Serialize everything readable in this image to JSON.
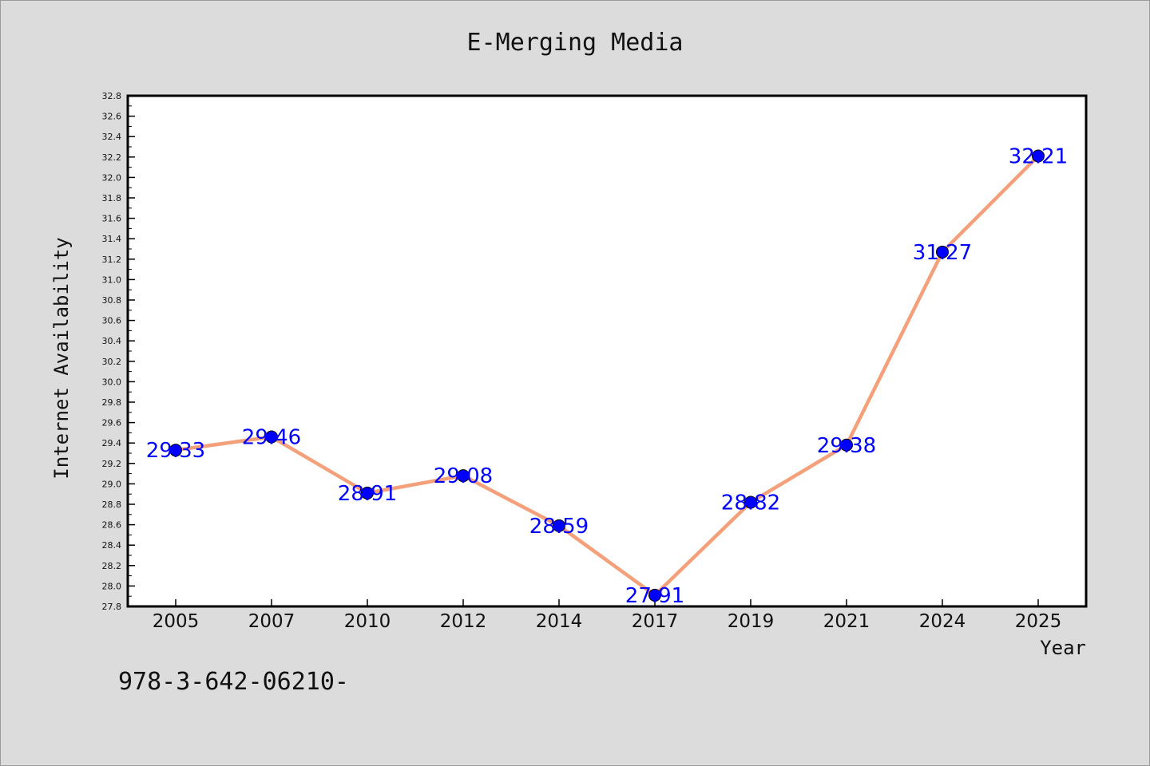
{
  "chart_data": {
    "type": "line",
    "title": "E-Merging Media",
    "xlabel": "Year",
    "ylabel": "Internet Availability",
    "categories": [
      "2005",
      "2007",
      "2010",
      "2012",
      "2014",
      "2017",
      "2019",
      "2021",
      "2024",
      "2025"
    ],
    "series": [
      {
        "values": [
          29.33,
          29.46,
          28.91,
          29.08,
          28.59,
          27.91,
          28.82,
          29.38,
          31.27,
          32.21
        ],
        "line_color": "#f4a07a",
        "marker_color": "#0000ff"
      }
    ],
    "data_labels": [
      "29.33",
      "29.46",
      "28.91",
      "29.08",
      "28.59",
      "27.91",
      "28.82",
      "29.38",
      "31.27",
      "32.21"
    ],
    "label_color": "#0000ff",
    "ylim": [
      27.8,
      32.8
    ],
    "yticks": [
      "27.8",
      "28.0",
      "28.2",
      "28.4",
      "28.6",
      "28.8",
      "29.0",
      "29.2",
      "29.4",
      "29.6",
      "29.8",
      "30.0",
      "30.2",
      "30.4",
      "30.6",
      "30.8",
      "31.0",
      "31.2",
      "31.4",
      "31.6",
      "31.8",
      "32.0",
      "32.2",
      "32.4",
      "32.6",
      "32.8"
    ],
    "grid": false,
    "legend": "none"
  },
  "footnote": "978-3-642-06210-",
  "colors": {
    "background": "#dcdcdc",
    "plot_background": "#ffffff",
    "axis": "#000000"
  }
}
